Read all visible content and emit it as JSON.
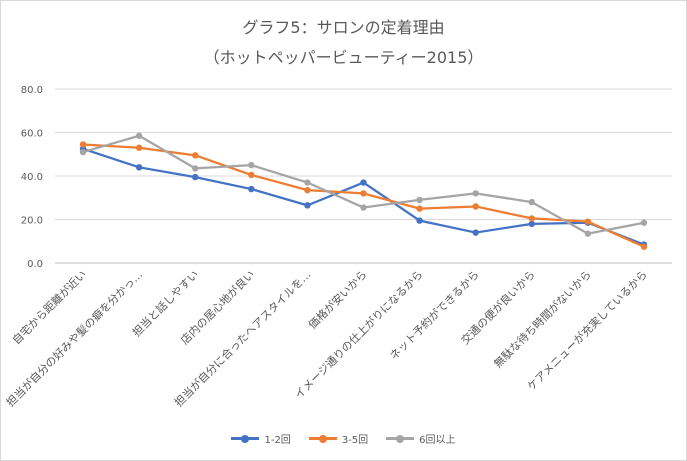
{
  "chart_data": {
    "type": "line",
    "title": "グラフ5：サロンの定着理由",
    "subtitle": "（ホットペッパービューティー2015）",
    "xlabel": "",
    "ylabel": "",
    "ylim": [
      0,
      80
    ],
    "yticks": [
      "0.0",
      "20.0",
      "40.0",
      "60.0",
      "80.0"
    ],
    "grid": true,
    "legend_position": "bottom",
    "categories": [
      "自宅から距離が近い",
      "担当が自分の好みや髪の癖を分かっ…",
      "担当と話しやすい",
      "店内の居心地が良い",
      "担当が自分に合ったヘアスタイルを…",
      "価格が安いから",
      "イメージ通りの仕上がりになるから",
      "ネット予約ができるから",
      "交通の便が良いから",
      "無駄な待ち時間がないから",
      "ケアメニューが充実しているから"
    ],
    "series": [
      {
        "name": "1-2回",
        "color": "#4472c4",
        "values": [
          52.5,
          44.0,
          39.5,
          34.0,
          26.5,
          37.0,
          19.5,
          14.0,
          18.0,
          18.5,
          8.5
        ]
      },
      {
        "name": "3-5回",
        "color": "#ed7d31",
        "values": [
          54.5,
          53.0,
          49.5,
          40.5,
          33.5,
          32.0,
          25.0,
          26.0,
          20.5,
          19.0,
          7.5
        ]
      },
      {
        "name": "6回以上",
        "color": "#a5a5a5",
        "values": [
          51.0,
          58.5,
          43.5,
          45.0,
          37.0,
          25.5,
          29.0,
          32.0,
          28.0,
          13.5,
          18.5
        ]
      }
    ]
  }
}
